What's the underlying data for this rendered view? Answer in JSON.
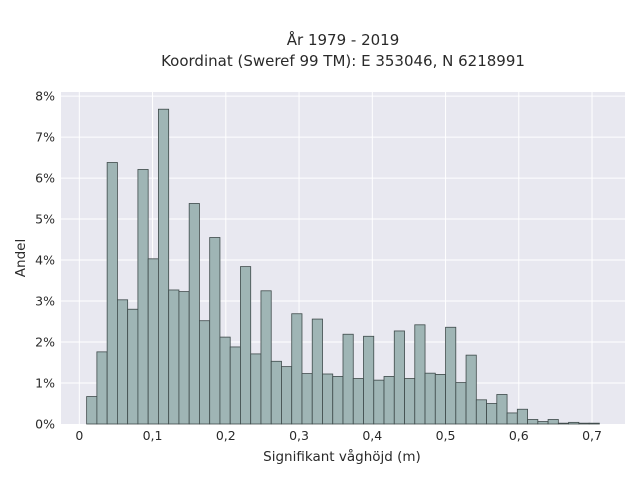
{
  "chart_data": {
    "type": "bar",
    "title": "År 1979 - 2019",
    "subtitle": "Koordinat (Sweref 99 TM): E 353046, N 6218991",
    "xlabel": "Signifikant våghöjd (m)",
    "ylabel": "Andel",
    "xlim": [
      -0.025,
      0.745
    ],
    "ylim": [
      0,
      8.1
    ],
    "x_ticks": [
      0,
      0.1,
      0.2,
      0.3,
      0.4,
      0.5,
      0.6,
      0.7
    ],
    "x_tick_labels": [
      "0",
      "0,1",
      "0,2",
      "0,3",
      "0,4",
      "0,5",
      "0,6",
      "0,7"
    ],
    "y_ticks": [
      0,
      1,
      2,
      3,
      4,
      5,
      6,
      7,
      8
    ],
    "y_tick_labels": [
      "0%",
      "1%",
      "2%",
      "3%",
      "4%",
      "5%",
      "6%",
      "7%",
      "8%"
    ],
    "bin_width": 0.014,
    "bin_start": 0.01,
    "values": [
      0.67,
      1.76,
      6.38,
      3.03,
      2.8,
      6.21,
      4.03,
      7.68,
      3.27,
      3.23,
      5.38,
      2.52,
      4.55,
      2.12,
      1.88,
      3.84,
      1.71,
      3.25,
      1.53,
      1.4,
      2.69,
      1.23,
      2.56,
      1.22,
      1.16,
      2.19,
      1.11,
      2.14,
      1.07,
      1.16,
      2.27,
      1.11,
      2.42,
      1.24,
      1.21,
      2.36,
      1.01,
      1.68,
      0.59,
      0.5,
      0.72,
      0.27,
      0.36,
      0.11,
      0.06,
      0.11,
      0.02,
      0.04,
      0.02,
      0.02
    ],
    "grid": true,
    "legend": "none",
    "colors": {
      "bar_fill": "#9fb5b5",
      "bar_stroke": "#3e4a4a",
      "plot_bg": "#e8e8f0",
      "grid": "#ffffff"
    }
  }
}
